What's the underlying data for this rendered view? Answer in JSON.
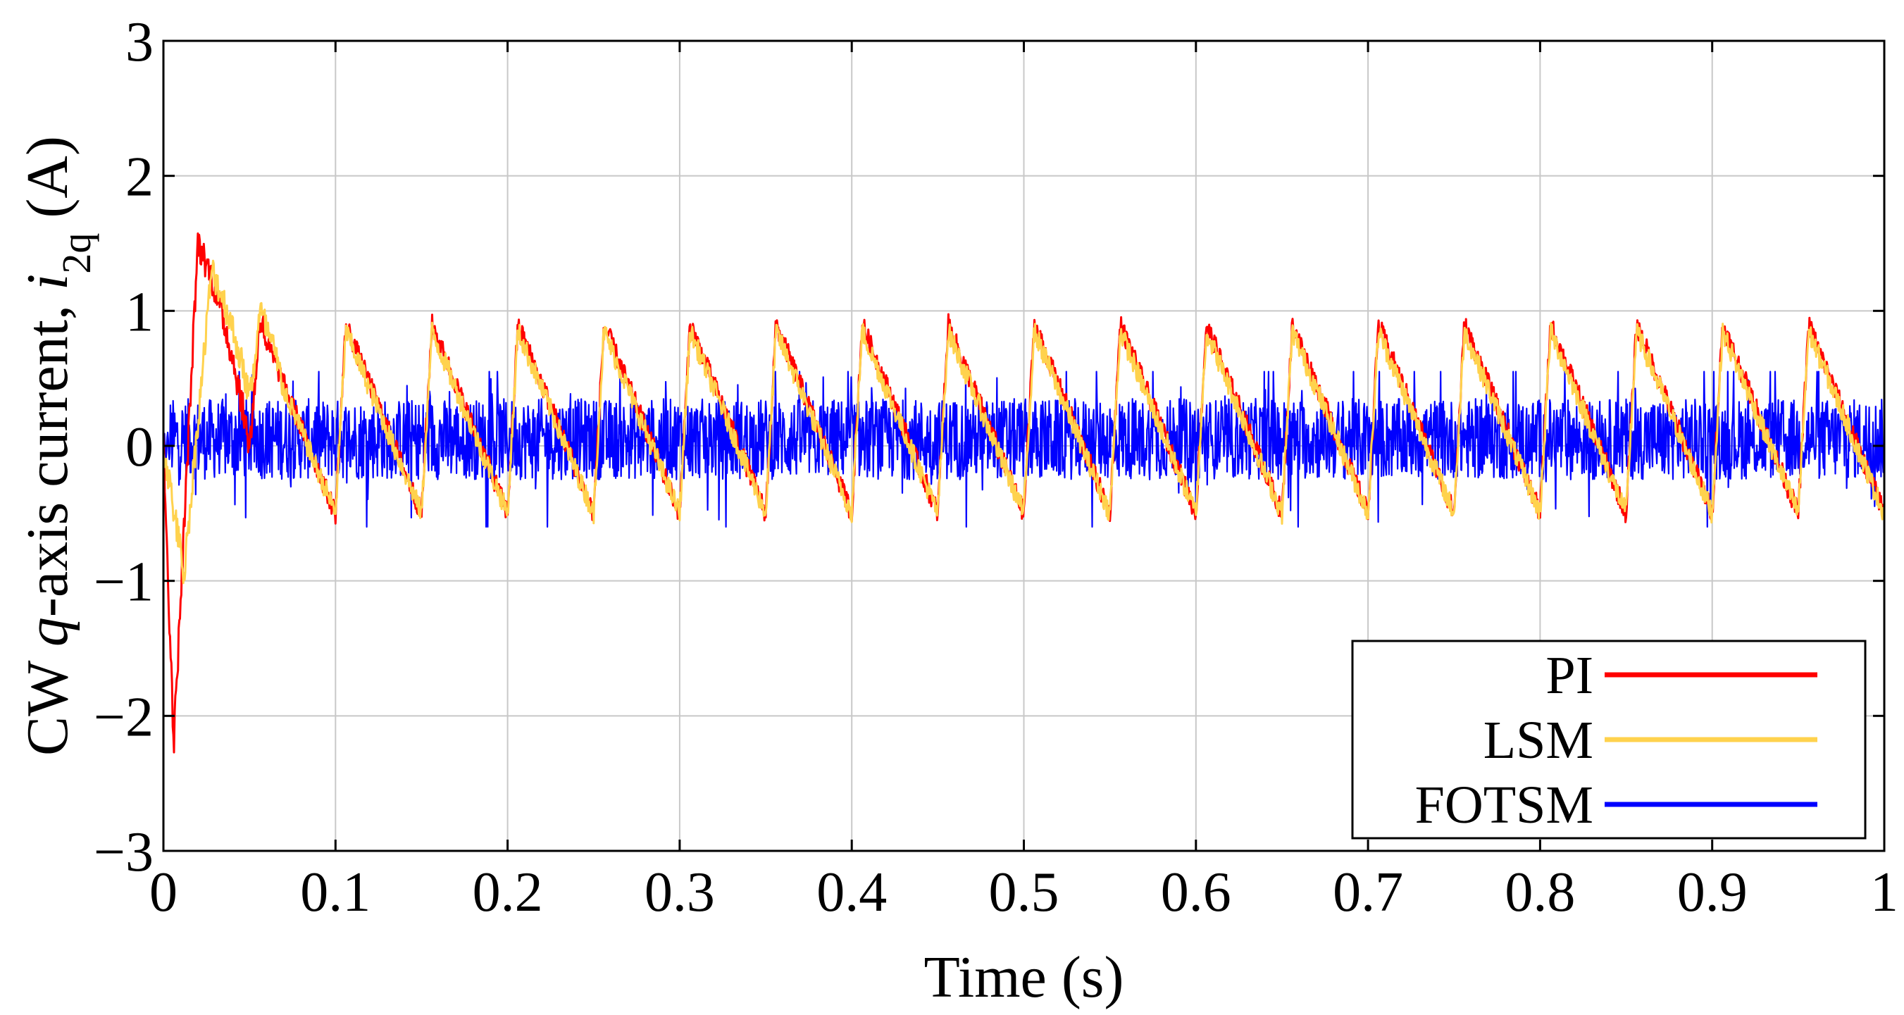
{
  "chart_data": {
    "type": "line",
    "title": "",
    "xlabel": "Time (s)",
    "ylabel": {
      "prefix": "CW ",
      "italic_q": "q",
      "middle": "-axis current, ",
      "italic_i": "i",
      "subscript": "2q",
      "suffix": " (A)"
    },
    "xlim": [
      0,
      1
    ],
    "ylim": [
      -3,
      3
    ],
    "xticks": [
      0,
      0.1,
      0.2,
      0.3,
      0.4,
      0.5,
      0.6,
      0.7,
      0.8,
      0.9,
      1
    ],
    "xtick_labels": [
      "0",
      "0.1",
      "0.2",
      "0.3",
      "0.4",
      "0.5",
      "0.6",
      "0.7",
      "0.8",
      "0.9",
      "1"
    ],
    "yticks": [
      -3,
      -2,
      -1,
      0,
      1,
      2,
      3
    ],
    "ytick_labels": [
      "−3",
      "−2",
      "−1",
      "0",
      "1",
      "2",
      "3"
    ],
    "grid": true,
    "legend_position": "bottom-right",
    "series": [
      {
        "name": "PI",
        "color": "#ff0000",
        "style": "sawtooth",
        "period_s": 0.05,
        "peak": 0.9,
        "trough": -0.5,
        "noise": 0.08,
        "transient": {
          "min": -2.2,
          "min_t": 0.006,
          "max": 1.5,
          "max_t": 0.02,
          "settle_s": 0.06
        }
      },
      {
        "name": "LSM",
        "color": "#ffd24d",
        "style": "sawtooth",
        "period_s": 0.05,
        "peak": 0.85,
        "trough": -0.5,
        "noise": 0.08,
        "transient": {
          "min": -0.95,
          "min_t": 0.012,
          "max": 1.3,
          "max_t": 0.028,
          "settle_s": 0.07
        }
      },
      {
        "name": "FOTSM",
        "color": "#0000ff",
        "style": "chatter",
        "center": 0.05,
        "band": 0.3,
        "peak": 0.55,
        "trough": -0.6,
        "noise": 0.2
      }
    ]
  }
}
